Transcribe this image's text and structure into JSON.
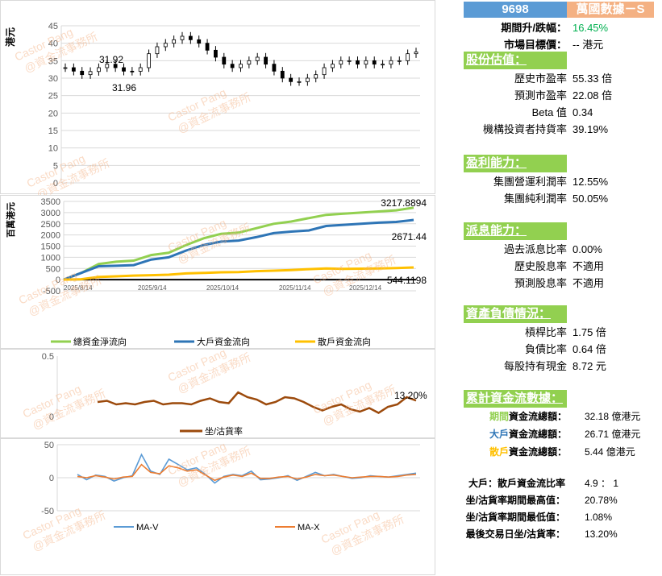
{
  "header": {
    "code": "9698",
    "name": "萬國數據－S",
    "code_bg": "#5b9bd5",
    "name_bg": "#f4b183"
  },
  "summary": [
    {
      "label": "期間升/跌幅：",
      "value": "16.45%",
      "color": "#00b050"
    },
    {
      "label": "市場目標價：",
      "value": "-- 港元"
    }
  ],
  "sections": [
    {
      "title": "股份估值：",
      "items": [
        {
          "label": "歷史市盈率",
          "value": "55.33 倍"
        },
        {
          "label": "預測市盈率",
          "value": "22.08 倍"
        },
        {
          "label": "Beta 值",
          "value": "0.34"
        },
        {
          "label": "機構投資者持貨率",
          "value": "39.19%"
        }
      ]
    },
    {
      "title": "盈利能力：",
      "items": [
        {
          "label": "集團營運利潤率",
          "value": "12.55%"
        },
        {
          "label": "集團純利潤率",
          "value": "50.05%"
        }
      ]
    },
    {
      "title": "派息能力：",
      "items": [
        {
          "label": "過去派息比率",
          "value": "0.00%"
        },
        {
          "label": "歷史股息率",
          "value": "不適用"
        },
        {
          "label": "預測股息率",
          "value": "不適用"
        }
      ]
    },
    {
      "title": "資產負債情況：",
      "items": [
        {
          "label": "槓桿比率",
          "value": "1.75 倍"
        },
        {
          "label": "負債比率",
          "value": "0.64 倍"
        },
        {
          "label": "每股持有現金",
          "value": "8.72 元"
        }
      ]
    },
    {
      "title": "累計資金流數據："
    }
  ],
  "flows": [
    {
      "prefix": "期間",
      "suffix": "資金流總額：",
      "value": "32.18 億港元",
      "color": "#92d050"
    },
    {
      "prefix": "大戶",
      "suffix": "資金流總額：",
      "value": "26.71 億港元",
      "color": "#2e75b6"
    },
    {
      "prefix": "散戶",
      "suffix": "資金流總額：",
      "value": "5.44 億港元",
      "color": "#ffc000"
    }
  ],
  "stats": [
    {
      "label": "大戶：散戶資金流比率",
      "value": "4.9 ： 1"
    },
    {
      "label": "坐/沽貨率期間最高值：",
      "value": "20.78%"
    },
    {
      "label": "坐/沽貨率期間最低值：",
      "value": "1.08%"
    },
    {
      "label": "最後交易日坐/沽貨率：",
      "value": "13.20%"
    }
  ],
  "watermark": [
    "Castor Pang",
    "@資金流事務所"
  ],
  "chart_data": [
    {
      "type": "candlestick",
      "ylabel": "港元",
      "ylim": [
        0,
        45
      ],
      "yticks": [
        0,
        5,
        10,
        15,
        20,
        25,
        30,
        35,
        40,
        45
      ],
      "annotations": [
        "31.92",
        "31.96"
      ],
      "close": [
        33,
        32,
        31,
        31.9,
        33,
        34,
        33,
        32,
        31.96,
        33,
        37,
        39,
        40,
        41,
        42,
        41,
        40,
        38,
        36,
        34,
        33,
        34,
        35,
        36,
        34,
        32,
        30,
        29,
        29,
        30,
        31,
        33,
        34,
        35,
        35,
        34,
        35,
        34,
        34,
        35,
        35,
        37,
        37.5
      ]
    },
    {
      "type": "line",
      "ylabel": "百萬港元",
      "ylim": [
        -500,
        3500
      ],
      "yticks": [
        -500,
        0,
        500,
        1000,
        1500,
        2000,
        2500,
        3000,
        3500
      ],
      "xticks": [
        "2025/8/14",
        "2025/9/14",
        "2025/10/14",
        "2025/11/14",
        "2025/12/14"
      ],
      "series": [
        {
          "name": "總資金淨流向",
          "color": "#92d050",
          "label": "3217.8894",
          "values": [
            0,
            300,
            700,
            800,
            850,
            1100,
            1200,
            1550,
            1850,
            2050,
            2100,
            2300,
            2500,
            2600,
            2750,
            2900,
            2950,
            3000,
            3050,
            3100,
            3217.89
          ]
        },
        {
          "name": "大戶資金流向",
          "color": "#2e75b6",
          "label": "2671.44",
          "values": [
            0,
            300,
            600,
            620,
            650,
            900,
            1000,
            1300,
            1550,
            1700,
            1750,
            1900,
            2080,
            2150,
            2200,
            2400,
            2450,
            2500,
            2550,
            2580,
            2671.44
          ]
        },
        {
          "name": "散戶資金流向",
          "color": "#ffc000",
          "label": "544.1198",
          "values": [
            0,
            20,
            120,
            150,
            180,
            200,
            220,
            280,
            300,
            330,
            340,
            380,
            400,
            430,
            470,
            500,
            480,
            490,
            500,
            520,
            544.12
          ]
        }
      ]
    },
    {
      "type": "line",
      "ylim": [
        0,
        0.5
      ],
      "yticks": [
        0,
        0.5
      ],
      "series": [
        {
          "name": "坐/沽貨率",
          "color": "#9c4a0c",
          "label": "13.20%",
          "values": [
            0.12,
            0.13,
            0.1,
            0.11,
            0.1,
            0.12,
            0.13,
            0.1,
            0.11,
            0.11,
            0.1,
            0.13,
            0.15,
            0.12,
            0.11,
            0.2,
            0.16,
            0.14,
            0.1,
            0.12,
            0.16,
            0.15,
            0.12,
            0.08,
            0.05,
            0.08,
            0.1,
            0.06,
            0.04,
            0.07,
            0.03,
            0.08,
            0.1,
            0.16,
            0.132
          ]
        }
      ]
    },
    {
      "type": "line",
      "ylim": [
        -50,
        50
      ],
      "yticks": [
        -50,
        0,
        50
      ],
      "series": [
        {
          "name": "MA-V",
          "color": "#5b9bd5",
          "values": [
            5,
            -3,
            4,
            2,
            -5,
            0,
            3,
            35,
            10,
            5,
            28,
            20,
            12,
            15,
            5,
            -8,
            2,
            5,
            3,
            10,
            -3,
            -2,
            0,
            3,
            -4,
            2,
            8,
            3,
            5,
            2,
            -1,
            0,
            3,
            2,
            1,
            3,
            5,
            7
          ]
        },
        {
          "name": "MA-X",
          "color": "#ed7d31",
          "values": [
            2,
            0,
            3,
            1,
            -2,
            1,
            2,
            20,
            8,
            6,
            18,
            15,
            10,
            12,
            4,
            -4,
            1,
            4,
            2,
            7,
            -1,
            -1,
            1,
            2,
            -2,
            1,
            5,
            3,
            4,
            2,
            0,
            1,
            2,
            2,
            1,
            2,
            4,
            5
          ]
        }
      ]
    }
  ]
}
